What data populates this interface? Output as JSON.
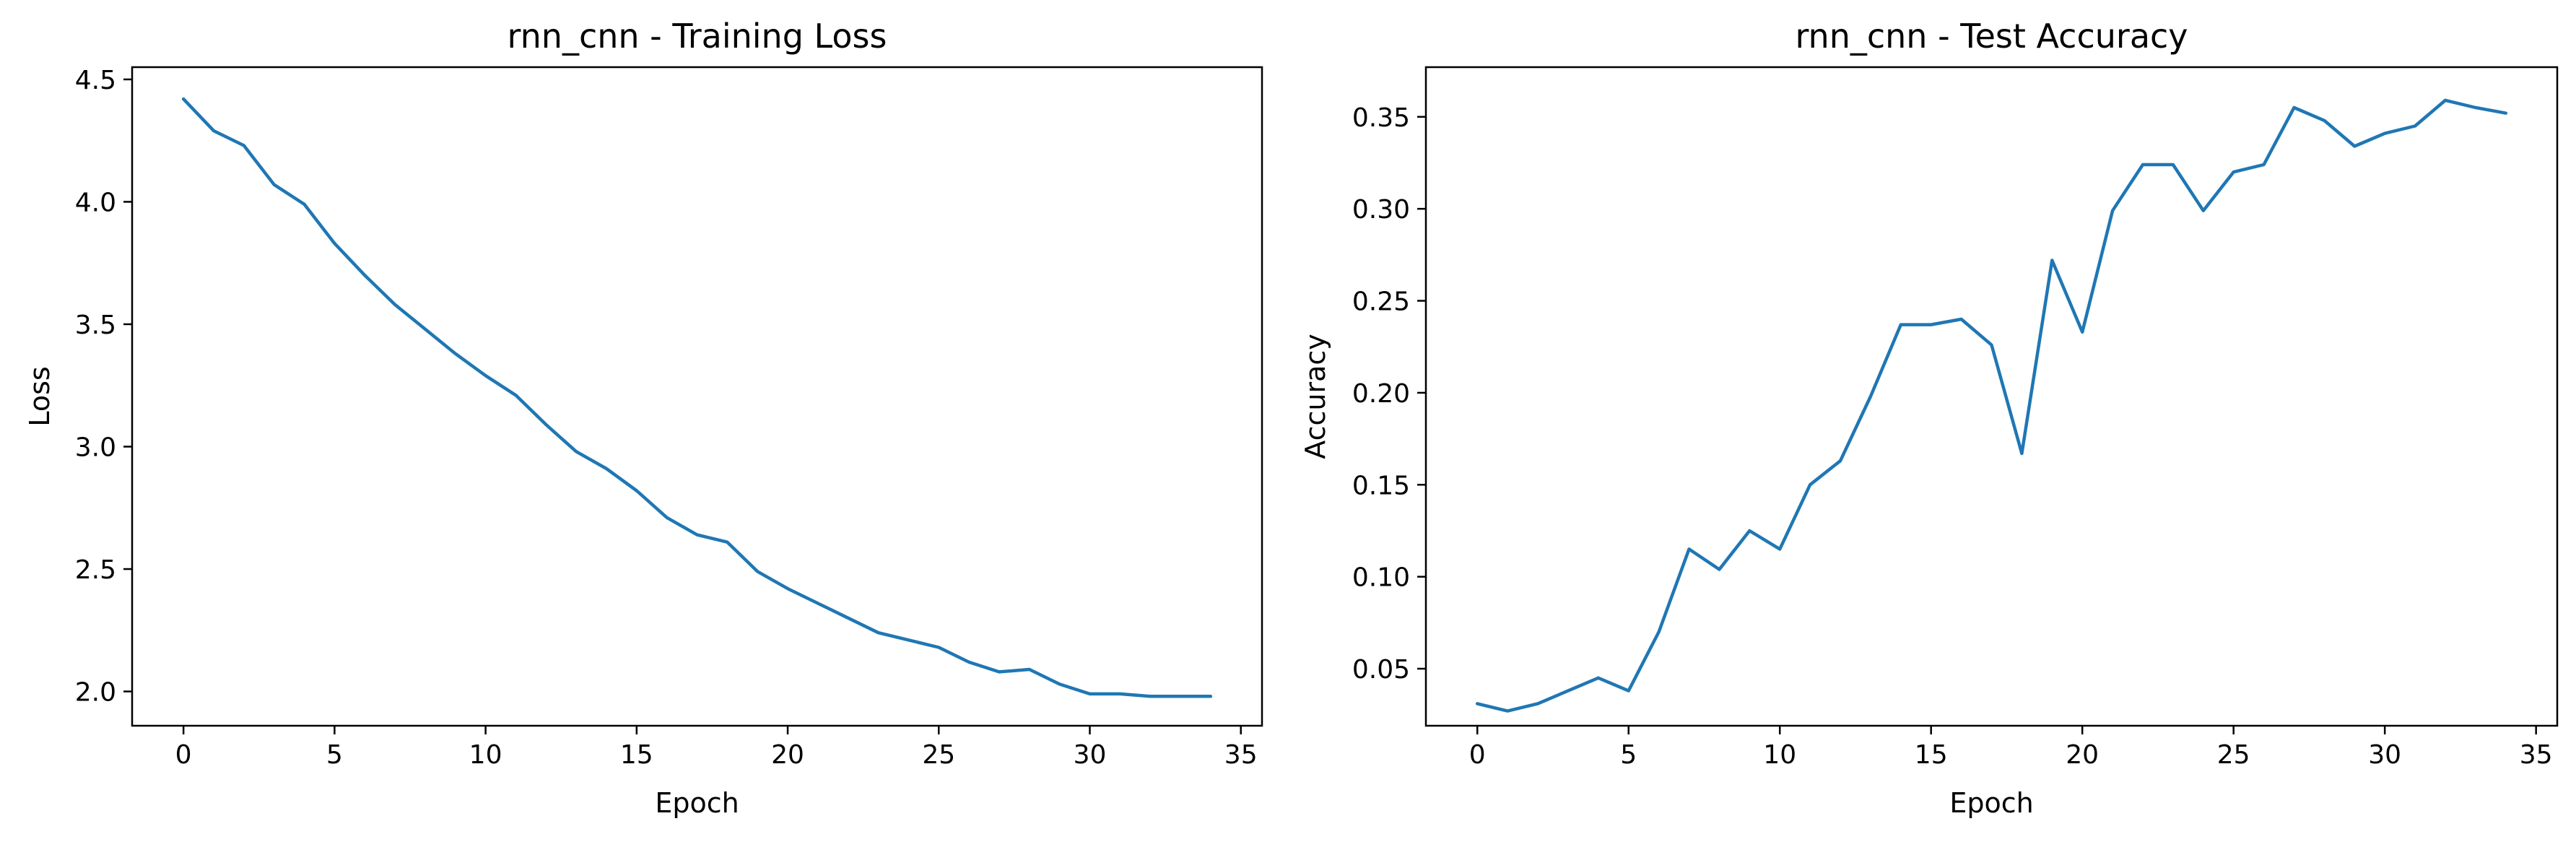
{
  "chart_data": [
    {
      "type": "line",
      "title": "rnn_cnn - Training Loss",
      "xlabel": "Epoch",
      "ylabel": "Loss",
      "xlim": [
        -1.7,
        35.7
      ],
      "ylim": [
        1.86,
        4.55
      ],
      "xticks": [
        0,
        5,
        10,
        15,
        20,
        25,
        30,
        35
      ],
      "yticks": [
        2.0,
        2.5,
        3.0,
        3.5,
        4.0,
        4.5
      ],
      "ytick_labels": [
        "2.0",
        "2.5",
        "3.0",
        "3.5",
        "4.0",
        "4.5"
      ],
      "grid": false,
      "color": "#1f77b4",
      "x": [
        0,
        1,
        2,
        3,
        4,
        5,
        6,
        7,
        8,
        9,
        10,
        11,
        12,
        13,
        14,
        15,
        16,
        17,
        18,
        19,
        20,
        21,
        22,
        23,
        24,
        25,
        26,
        27,
        28,
        29,
        30,
        31,
        32,
        33,
        34
      ],
      "values": [
        4.42,
        4.29,
        4.23,
        4.07,
        3.99,
        3.83,
        3.7,
        3.58,
        3.48,
        3.38,
        3.29,
        3.21,
        3.09,
        2.98,
        2.91,
        2.82,
        2.71,
        2.64,
        2.61,
        2.49,
        2.42,
        2.36,
        2.3,
        2.24,
        2.21,
        2.18,
        2.12,
        2.08,
        2.09,
        2.03,
        1.99,
        1.99,
        1.98,
        1.98,
        1.98
      ]
    },
    {
      "type": "line",
      "title": "rnn_cnn - Test Accuracy",
      "xlabel": "Epoch",
      "ylabel": "Accuracy",
      "xlim": [
        -1.7,
        35.7
      ],
      "ylim": [
        0.019,
        0.377
      ],
      "xticks": [
        0,
        5,
        10,
        15,
        20,
        25,
        30,
        35
      ],
      "yticks": [
        0.05,
        0.1,
        0.15,
        0.2,
        0.25,
        0.3,
        0.35
      ],
      "ytick_labels": [
        "0.05",
        "0.10",
        "0.15",
        "0.20",
        "0.25",
        "0.30",
        "0.35"
      ],
      "grid": false,
      "color": "#1f77b4",
      "x": [
        0,
        1,
        2,
        3,
        4,
        5,
        6,
        7,
        8,
        9,
        10,
        11,
        12,
        13,
        14,
        15,
        16,
        17,
        18,
        19,
        20,
        21,
        22,
        23,
        24,
        25,
        26,
        27,
        28,
        29,
        30,
        31,
        32,
        33,
        34
      ],
      "values": [
        0.031,
        0.027,
        0.031,
        0.038,
        0.045,
        0.038,
        0.07,
        0.115,
        0.104,
        0.125,
        0.115,
        0.15,
        0.163,
        0.198,
        0.237,
        0.237,
        0.24,
        0.226,
        0.167,
        0.272,
        0.233,
        0.299,
        0.324,
        0.324,
        0.299,
        0.32,
        0.324,
        0.355,
        0.348,
        0.334,
        0.341,
        0.345,
        0.359,
        0.355,
        0.352
      ]
    }
  ]
}
